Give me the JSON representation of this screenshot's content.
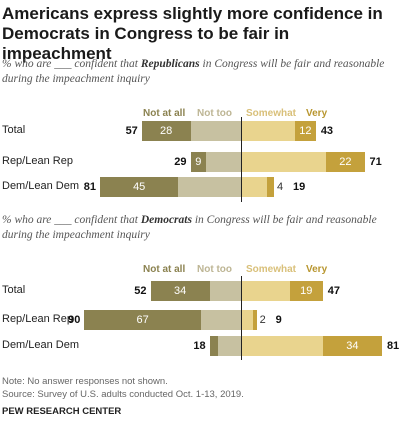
{
  "header": {
    "title": "Americans express slightly more confidence in Democrats in Congress to be fair in impeachment"
  },
  "legend": {
    "not_at_all": "Not at all",
    "not_too": "Not too",
    "somewhat": "Somewhat",
    "very": "Very"
  },
  "colors": {
    "not_at_all": "#8b8250",
    "not_too": "#c7c1a1",
    "somewhat": "#e9d48e",
    "very": "#c4a13c",
    "not_at_all_text": "#8b8250",
    "not_too_text": "#bdb594",
    "somewhat_text": "#d9c07a",
    "very_text": "#b8962f"
  },
  "chart_data": [
    {
      "type": "bar",
      "subtitle_pre": "% who are ___ confident that ",
      "subtitle_party": "Republicans",
      "subtitle_post": " in Congress will be fair and reasonable during the impeachment inquiry",
      "categories": [
        "Total",
        "Rep/Lean Rep",
        "Dem/Lean Dem"
      ],
      "series": [
        {
          "name": "Not at all",
          "values": [
            28,
            9,
            45
          ]
        },
        {
          "name": "Not too",
          "values": [
            29,
            20,
            36
          ]
        },
        {
          "name": "Somewhat",
          "values": [
            31,
            49,
            15
          ]
        },
        {
          "name": "Very",
          "values": [
            12,
            22,
            4
          ]
        }
      ],
      "net_not_confident": [
        57,
        29,
        81
      ],
      "net_confident": [
        43,
        71,
        19
      ]
    },
    {
      "type": "bar",
      "subtitle_pre": "% who are ___ confident that ",
      "subtitle_party": "Democrats",
      "subtitle_post": " in Congress will be fair and reasonable during the impeachment inquiry",
      "categories": [
        "Total",
        "Rep/Lean Rep",
        "Dem/Lean Dem"
      ],
      "series": [
        {
          "name": "Not at all",
          "values": [
            34,
            67,
            5
          ]
        },
        {
          "name": "Not too",
          "values": [
            18,
            23,
            13
          ]
        },
        {
          "name": "Somewhat",
          "values": [
            28,
            7,
            47
          ]
        },
        {
          "name": "Very",
          "values": [
            19,
            2,
            34
          ]
        }
      ],
      "net_not_confident": [
        52,
        90,
        18
      ],
      "net_confident": [
        47,
        9,
        81
      ]
    }
  ],
  "footer": {
    "note": "Note: No answer responses not shown.",
    "source": "Source: Survey of U.S. adults conducted Oct. 1-13, 2019.",
    "brand": "PEW RESEARCH CENTER"
  }
}
